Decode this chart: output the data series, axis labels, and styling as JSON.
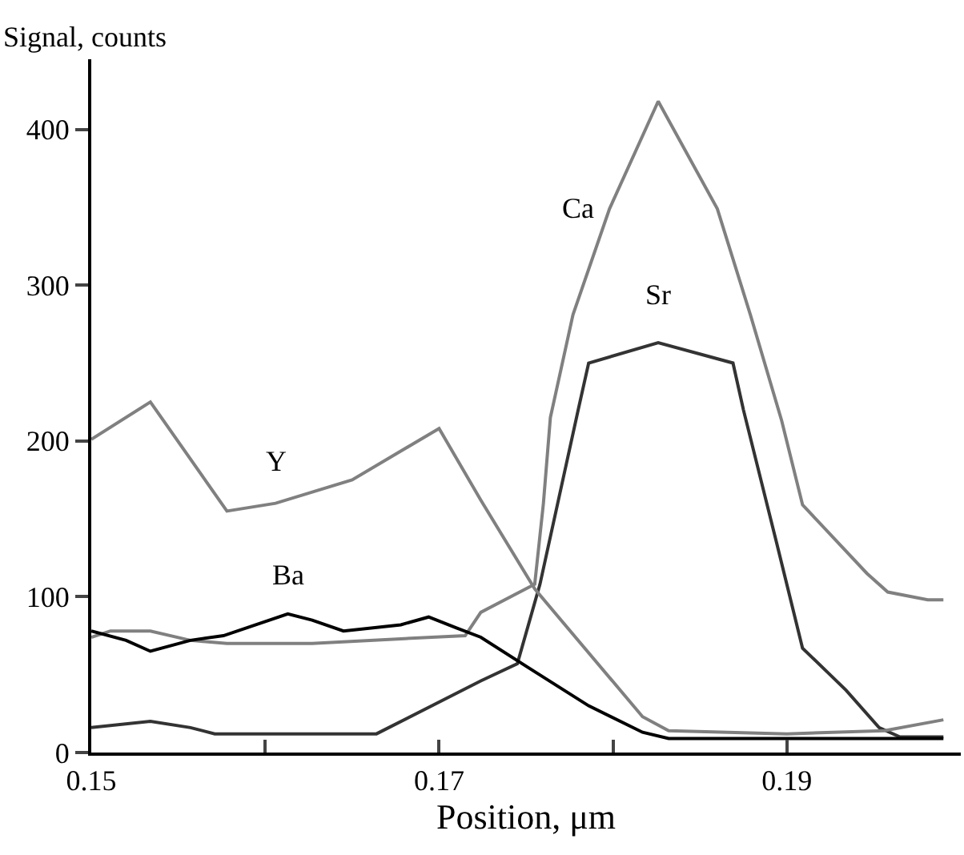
{
  "chart_data": {
    "type": "line",
    "xlabel": "Position, μm",
    "ylabel": "Signal, counts",
    "xlim": [
      0.15,
      0.2
    ],
    "xticks": [
      0.15,
      {
        "value": 0.16,
        "label": null
      },
      0.17,
      {
        "value": 0.18,
        "label": null
      },
      0.19
    ],
    "ylim": [
      0,
      445
    ],
    "yticks": [
      0,
      100,
      200,
      300,
      400
    ],
    "grid": false,
    "legend": false,
    "marker": "none",
    "line_style": "solid",
    "series": [
      {
        "name": "Ca",
        "color": "#808080",
        "x": [
          0.15,
          0.1511,
          0.1534,
          0.1557,
          0.1578,
          0.1627,
          0.1678,
          0.1715,
          0.1724,
          0.1755,
          0.176,
          0.1764,
          0.1777,
          0.1798,
          0.1826,
          0.186,
          0.1879,
          0.1897,
          0.1909,
          0.1946,
          0.1958,
          0.1981,
          0.199
        ],
        "values": [
          74,
          78,
          78,
          72,
          70,
          70,
          73,
          75,
          90,
          108,
          160,
          215,
          281,
          349,
          418,
          349,
          281,
          213,
          159,
          115,
          103,
          98,
          98
        ]
      },
      {
        "name": "Sr",
        "color": "#333333",
        "x": [
          0.15,
          0.1534,
          0.1557,
          0.1571,
          0.1664,
          0.1724,
          0.1745,
          0.1758,
          0.178,
          0.1786,
          0.1826,
          0.1869,
          0.1875,
          0.1894,
          0.1909,
          0.1934,
          0.1953,
          0.1965,
          0.199
        ],
        "values": [
          16,
          20,
          16,
          12,
          12,
          46,
          57,
          108,
          220,
          250,
          263,
          250,
          220,
          135,
          67,
          40,
          16,
          10,
          10
        ]
      },
      {
        "name": "Y",
        "color": "#808080",
        "x": [
          0.15,
          0.1534,
          0.1578,
          0.1606,
          0.165,
          0.17,
          0.1724,
          0.1755,
          0.1817,
          0.1832,
          0.19,
          0.1956,
          0.199
        ],
        "values": [
          201,
          225,
          155,
          160,
          175,
          208,
          162,
          105,
          23,
          14,
          12,
          14,
          21
        ]
      },
      {
        "name": "Ba",
        "color": "#000000",
        "x": [
          0.15,
          0.152,
          0.1534,
          0.1557,
          0.1576,
          0.1613,
          0.1627,
          0.1645,
          0.1678,
          0.1694,
          0.171,
          0.1724,
          0.1752,
          0.1786,
          0.1817,
          0.1832,
          0.199
        ],
        "values": [
          78,
          72,
          65,
          72,
          75,
          89,
          85,
          78,
          82,
          87,
          80,
          74,
          54,
          30,
          13,
          9,
          9
        ]
      }
    ]
  }
}
